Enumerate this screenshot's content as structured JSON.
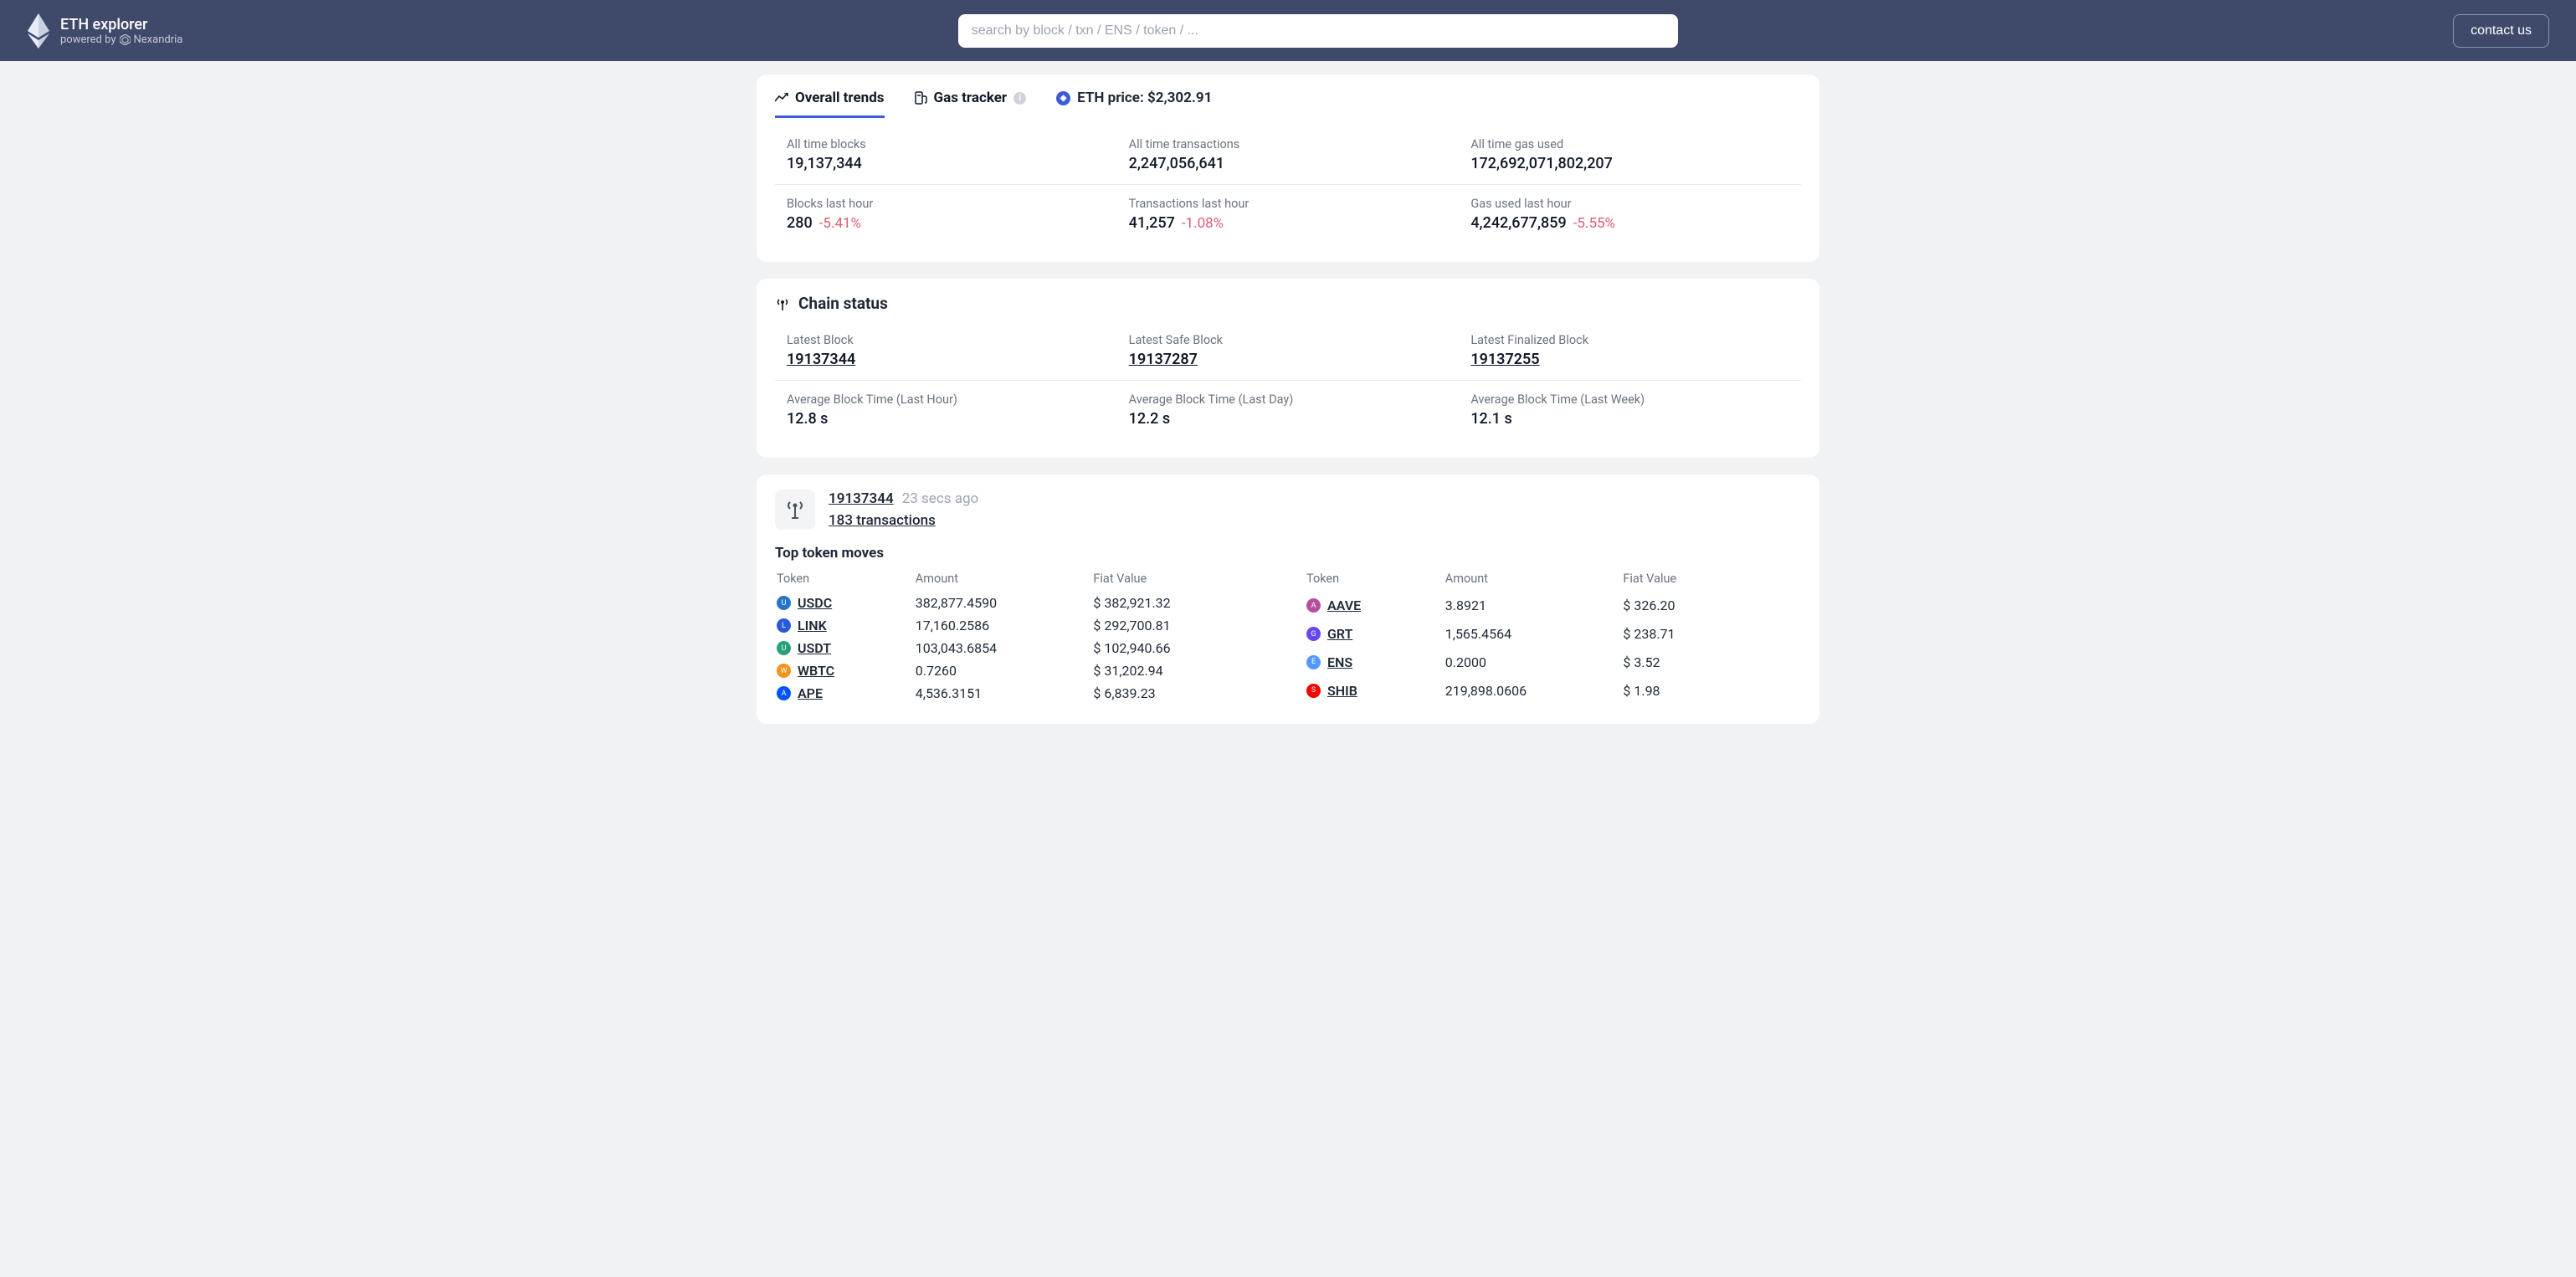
{
  "header": {
    "title": "ETH explorer",
    "powered_prefix": "powered by",
    "powered_name": "Nexandria",
    "search_placeholder": "search by block / txn / ENS / token / ...",
    "contact_label": "contact us"
  },
  "tabs": {
    "trends_label": "Overall trends",
    "gas_label": "Gas tracker",
    "eth_price_label": "ETH price: $2,302.91"
  },
  "stats": {
    "row1": [
      {
        "label": "All time blocks",
        "value": "19,137,344"
      },
      {
        "label": "All time transactions",
        "value": "2,247,056,641"
      },
      {
        "label": "All time gas used",
        "value": "172,692,071,802,207"
      }
    ],
    "row2": [
      {
        "label": "Blocks last hour",
        "value": "280",
        "delta": "-5.41%"
      },
      {
        "label": "Transactions last hour",
        "value": "41,257",
        "delta": "-1.08%"
      },
      {
        "label": "Gas used last hour",
        "value": "4,242,677,859",
        "delta": "-5.55%"
      }
    ]
  },
  "chain_status": {
    "title": "Chain status",
    "row1": [
      {
        "label": "Latest Block",
        "value": "19137344",
        "link": true
      },
      {
        "label": "Latest Safe Block",
        "value": "19137287",
        "link": true
      },
      {
        "label": "Latest Finalized Block",
        "value": "19137255",
        "link": true
      }
    ],
    "row2": [
      {
        "label": "Average Block Time (Last Hour)",
        "value": "12.8 s"
      },
      {
        "label": "Average Block Time (Last Day)",
        "value": "12.2 s"
      },
      {
        "label": "Average Block Time (Last Week)",
        "value": "12.1 s"
      }
    ]
  },
  "latest_block": {
    "number": "19137344",
    "time_ago": "23 secs ago",
    "tx_count_label": "183 transactions",
    "top_moves_title": "Top token moves",
    "headers": {
      "token": "Token",
      "amount": "Amount",
      "fiat": "Fiat Value"
    },
    "left": [
      {
        "symbol": "USDC",
        "amount": "382,877.4590",
        "fiat": "$ 382,921.32",
        "color": "#2775ca"
      },
      {
        "symbol": "LINK",
        "amount": "17,160.2586",
        "fiat": "$ 292,700.81",
        "color": "#2a5ada"
      },
      {
        "symbol": "USDT",
        "amount": "103,043.6854",
        "fiat": "$ 102,940.66",
        "color": "#26a17b"
      },
      {
        "symbol": "WBTC",
        "amount": "0.7260",
        "fiat": "$ 31,202.94",
        "color": "#f7931a"
      },
      {
        "symbol": "APE",
        "amount": "4,536.3151",
        "fiat": "$ 6,839.23",
        "color": "#0054f9"
      }
    ],
    "right": [
      {
        "symbol": "AAVE",
        "amount": "3.8921",
        "fiat": "$ 326.20",
        "color": "#b6509e"
      },
      {
        "symbol": "GRT",
        "amount": "1,565.4564",
        "fiat": "$ 238.71",
        "color": "#6747ed"
      },
      {
        "symbol": "ENS",
        "amount": "0.2000",
        "fiat": "$ 3.52",
        "color": "#5298ff"
      },
      {
        "symbol": "SHIB",
        "amount": "219,898.0606",
        "fiat": "$ 1.98",
        "color": "#f00500"
      }
    ]
  },
  "colors": {
    "header_bg": "#3f4a6b",
    "page_bg": "#f1f2f4",
    "accent": "#3b5bdb",
    "text_muted": "#6b7280",
    "delta_negative": "#e05b6f",
    "border": "#e5e7eb"
  }
}
